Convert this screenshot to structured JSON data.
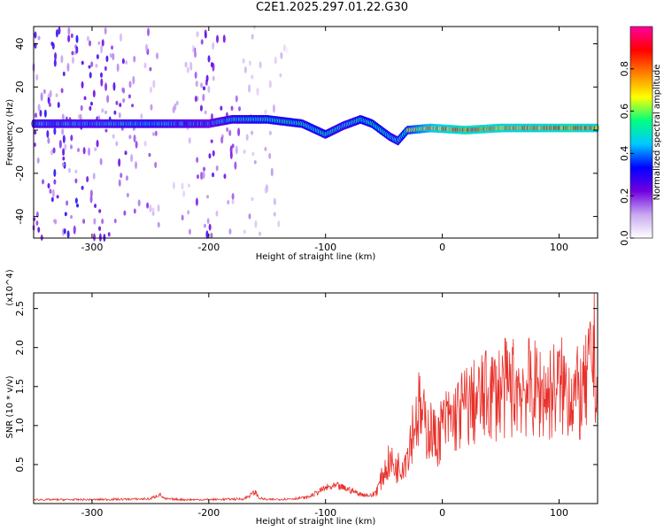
{
  "page": {
    "title": "C2E1.2025.297.01.22.G30"
  },
  "chart_data": [
    {
      "type": "heatmap",
      "xlabel": "Height of straight line (km)",
      "ylabel": "Frequency (Hz)",
      "xlim": [
        -350,
        133
      ],
      "ylim": [
        -50,
        48
      ],
      "xticks": [
        -300,
        -200,
        -100,
        0,
        100
      ],
      "yticks": [
        -40,
        -20,
        0,
        20,
        40
      ],
      "colorbar": {
        "label": "Normalized spectral amplitude",
        "range": [
          0.0,
          1.0
        ],
        "ticks": [
          0.0,
          0.2,
          0.4,
          0.6,
          0.8
        ],
        "tick_labels": [
          "0.0",
          "0.2",
          "0.4",
          "0.6",
          "0.8"
        ],
        "colormap": [
          "#ffffff",
          "#c8a8f0",
          "#7000e0",
          "#0000ff",
          "#00c8ff",
          "#00ff80",
          "#ffff00",
          "#ff8000",
          "#ff0000",
          "#ff00a0"
        ]
      },
      "ridge": [
        {
          "x": -350,
          "freq": 3,
          "amp": 0.45
        },
        {
          "x": -300,
          "freq": 3,
          "amp": 0.45
        },
        {
          "x": -250,
          "freq": 3,
          "amp": 0.5
        },
        {
          "x": -200,
          "freq": 3,
          "amp": 0.4
        },
        {
          "x": -180,
          "freq": 5,
          "amp": 0.5
        },
        {
          "x": -150,
          "freq": 5,
          "amp": 0.55
        },
        {
          "x": -120,
          "freq": 3,
          "amp": 0.55
        },
        {
          "x": -100,
          "freq": -2,
          "amp": 0.55
        },
        {
          "x": -85,
          "freq": 2,
          "amp": 0.5
        },
        {
          "x": -70,
          "freq": 5,
          "amp": 0.55
        },
        {
          "x": -60,
          "freq": 3,
          "amp": 0.6
        },
        {
          "x": -45,
          "freq": -3,
          "amp": 0.55
        },
        {
          "x": -38,
          "freq": -5,
          "amp": 0.5
        },
        {
          "x": -30,
          "freq": 0,
          "amp": 0.65
        },
        {
          "x": -10,
          "freq": 1,
          "amp": 0.8
        },
        {
          "x": 20,
          "freq": 0,
          "amp": 0.9
        },
        {
          "x": 50,
          "freq": 1,
          "amp": 0.85
        },
        {
          "x": 80,
          "freq": 1,
          "amp": 0.85
        },
        {
          "x": 110,
          "freq": 1,
          "amp": 0.9
        },
        {
          "x": 133,
          "freq": 1,
          "amp": 0.85
        }
      ],
      "background_noise": [
        {
          "x": -350,
          "amp": 0.25
        },
        {
          "x": -300,
          "amp": 0.25
        },
        {
          "x": -250,
          "amp": 0.15
        },
        {
          "x": -230,
          "amp": 0.1
        },
        {
          "x": -200,
          "amp": 0.22
        },
        {
          "x": -180,
          "amp": 0.18
        },
        {
          "x": -160,
          "amp": 0.12
        },
        {
          "x": -135,
          "amp": 0.08
        },
        {
          "x": -130,
          "amp": 0.0
        },
        {
          "x": 133,
          "amp": 0.0
        }
      ]
    },
    {
      "type": "line",
      "xlabel": "Height of straight line (km)",
      "ylabel": "SNR (10 * v/v)",
      "y_multiplier": "(x10^4)",
      "xlim": [
        -350,
        133
      ],
      "ylim": [
        0,
        2.7
      ],
      "xticks": [
        -300,
        -200,
        -100,
        0,
        100
      ],
      "yticks": [
        0.5,
        1.0,
        1.5,
        2.0,
        2.5
      ],
      "ytick_labels": [
        "0.5",
        "1.0",
        "1.5",
        "2.0",
        "2.5"
      ],
      "color": "#e8302a",
      "series": [
        {
          "x": [
            -350,
            -300,
            -250,
            -242,
            -238,
            -220,
            -200,
            -170,
            -160,
            -157,
            -150,
            -130,
            -115,
            -100,
            -90,
            -80,
            -70,
            -60,
            -55,
            -50,
            -45,
            -40,
            -35,
            -30,
            -25,
            -20,
            -15,
            -10,
            -5,
            0,
            10,
            20,
            30,
            40,
            50,
            60,
            70,
            80,
            90,
            100,
            110,
            120,
            125,
            130,
            133
          ],
          "y": [
            0.05,
            0.05,
            0.06,
            0.12,
            0.06,
            0.05,
            0.05,
            0.06,
            0.15,
            0.07,
            0.05,
            0.06,
            0.08,
            0.2,
            0.22,
            0.18,
            0.12,
            0.1,
            0.2,
            0.4,
            0.55,
            0.45,
            0.5,
            0.65,
            1.0,
            1.2,
            1.0,
            0.95,
            0.8,
            1.0,
            1.1,
            1.25,
            1.3,
            1.4,
            1.45,
            1.5,
            1.5,
            1.45,
            1.4,
            1.5,
            1.45,
            1.35,
            1.6,
            2.0,
            1.3
          ]
        }
      ]
    }
  ]
}
